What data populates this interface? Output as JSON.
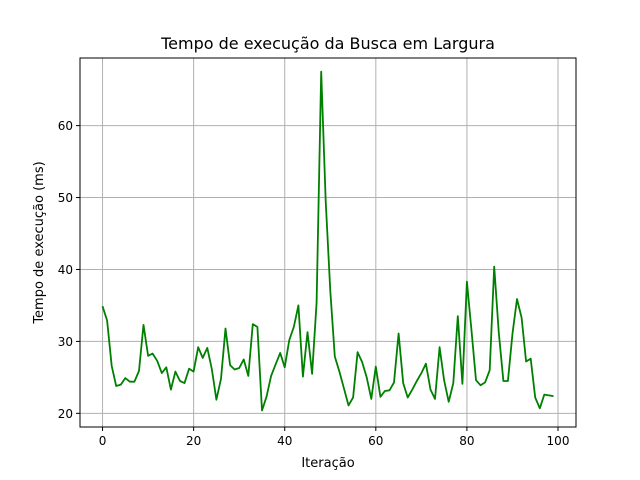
{
  "chart_data": {
    "type": "line",
    "title": "Tempo de execução da Busca em Largura",
    "xlabel": "Iteração",
    "ylabel": "Tempo de execução (ms)",
    "xlim": [
      -4.95,
      103.95
    ],
    "ylim": [
      18.1,
      69.4
    ],
    "xticks": [
      0,
      20,
      40,
      60,
      80,
      100
    ],
    "yticks": [
      20,
      30,
      40,
      50,
      60
    ],
    "grid": true,
    "line_color": "#008000",
    "series": [
      {
        "x": [
          0,
          1,
          2,
          3,
          4,
          5,
          6,
          7,
          8,
          9,
          10,
          11,
          12,
          13,
          14,
          15,
          16,
          17,
          18,
          19,
          20,
          21,
          22,
          23,
          24,
          25,
          26,
          27,
          28,
          29,
          30,
          31,
          32,
          33,
          34,
          35,
          36,
          37,
          38,
          39,
          40,
          41,
          42,
          43,
          44,
          45,
          46,
          47,
          48,
          49,
          50,
          51,
          52,
          53,
          54,
          55,
          56,
          57,
          58,
          59,
          60,
          61,
          62,
          63,
          64,
          65,
          66,
          67,
          68,
          69,
          70,
          71,
          72,
          73,
          74,
          75,
          76,
          77,
          78,
          79,
          80,
          81,
          82,
          83,
          84,
          85,
          86,
          87,
          88,
          89,
          90,
          91,
          92,
          93,
          94,
          95,
          96,
          97,
          98,
          99
        ],
        "values": [
          34.9,
          32.9,
          26.6,
          23.8,
          24.0,
          24.9,
          24.4,
          24.4,
          25.9,
          32.3,
          28.0,
          28.3,
          27.3,
          25.6,
          26.4,
          23.3,
          25.8,
          24.5,
          24.2,
          26.2,
          25.8,
          29.2,
          27.7,
          29.1,
          26.1,
          21.9,
          24.8,
          31.8,
          26.7,
          26.1,
          26.3,
          27.5,
          25.2,
          32.4,
          32.0,
          20.4,
          22.3,
          25.2,
          26.8,
          28.4,
          26.4,
          30.2,
          32.0,
          35.0,
          25.1,
          31.3,
          25.5,
          35.4,
          67.5,
          49.5,
          37.0,
          27.9,
          25.8,
          23.5,
          21.1,
          22.2,
          28.5,
          27.1,
          25.0,
          22.0,
          26.5,
          22.3,
          23.1,
          23.2,
          24.3,
          31.1,
          24.2,
          22.2,
          23.3,
          24.5,
          25.6,
          26.9,
          23.3,
          22.0,
          29.2,
          24.6,
          21.6,
          24.2,
          33.5,
          24.1,
          38.3,
          31.5,
          24.6,
          23.9,
          24.3,
          26.0,
          40.4,
          31.2,
          24.5,
          24.5,
          31.1,
          35.9,
          33.3,
          27.2,
          27.6,
          22.2,
          20.7,
          22.6,
          22.5,
          22.4
        ]
      }
    ]
  }
}
